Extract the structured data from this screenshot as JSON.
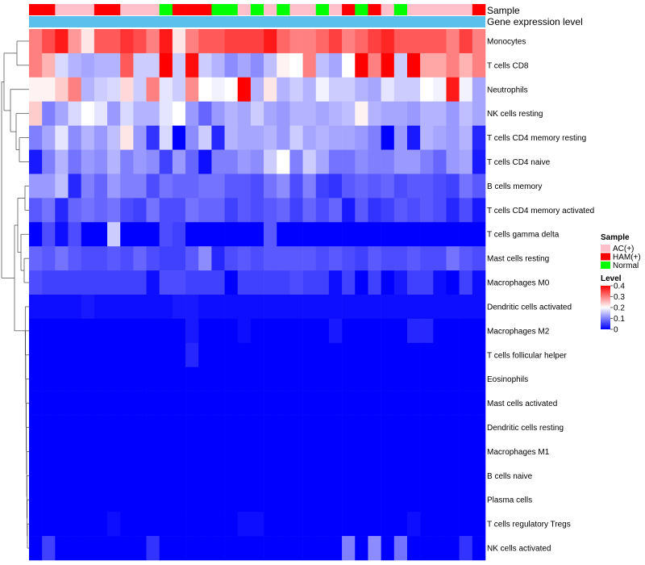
{
  "chart_data": {
    "type": "heatmap",
    "annotation_labels": [
      "Sample",
      "Gene expression level"
    ],
    "rows": [
      "Monocytes",
      "T cells CD8",
      "Neutrophils",
      "NK cells resting",
      "T cells CD4 memory resting",
      "T cells CD4 naive",
      "B cells memory",
      "T cells CD4 memory activated",
      "T cells gamma delta",
      "Mast cells resting",
      "Macrophages M0",
      "Dendritic cells activated",
      "Macrophages M2",
      "T cells follicular helper",
      "Eosinophils",
      "Mast cells activated",
      "Dendritic cells resting",
      "Macrophages M1",
      "B cells naive",
      "Plasma cells",
      "T cells regulatory  Tregs",
      "NK cells activated"
    ],
    "sample_groups": [
      "HAM(+)",
      "HAM(+)",
      "AC(+)",
      "AC(+)",
      "AC(+)",
      "HAM(+)",
      "HAM(+)",
      "AC(+)",
      "AC(+)",
      "AC(+)",
      "Normal",
      "HAM(+)",
      "HAM(+)",
      "HAM(+)",
      "Normal",
      "Normal",
      "AC(+)",
      "Normal",
      "AC(+)",
      "Normal",
      "AC(+)",
      "AC(+)",
      "Normal",
      "AC(+)",
      "HAM(+)",
      "Normal",
      "HAM(+)",
      "AC(+)",
      "Normal",
      "AC(+)",
      "AC(+)",
      "AC(+)",
      "AC(+)",
      "AC(+)",
      "HAM(+)"
    ],
    "values": [
      [
        0.3,
        0.34,
        0.38,
        0.28,
        0.22,
        0.33,
        0.33,
        0.36,
        0.34,
        0.3,
        0.38,
        0.22,
        0.3,
        0.33,
        0.33,
        0.35,
        0.35,
        0.35,
        0.38,
        0.32,
        0.3,
        0.3,
        0.32,
        0.35,
        0.3,
        0.32,
        0.35,
        0.37,
        0.33,
        0.33,
        0.33,
        0.33,
        0.3,
        0.35,
        0.3
      ],
      [
        0.3,
        0.26,
        0.17,
        0.14,
        0.13,
        0.14,
        0.14,
        0.33,
        0.16,
        0.16,
        0.4,
        0.16,
        0.39,
        0.16,
        0.14,
        0.11,
        0.13,
        0.11,
        0.15,
        0.21,
        0.2,
        0.3,
        0.15,
        0.13,
        0.2,
        0.4,
        0.3,
        0.4,
        0.16,
        0.4,
        0.27,
        0.27,
        0.3,
        0.26,
        0.3
      ],
      [
        0.21,
        0.21,
        0.24,
        0.3,
        0.14,
        0.16,
        0.17,
        0.23,
        0.16,
        0.3,
        0.18,
        0.16,
        0.29,
        0.2,
        0.19,
        0.2,
        0.4,
        0.14,
        0.22,
        0.14,
        0.16,
        0.14,
        0.19,
        0.16,
        0.16,
        0.14,
        0.13,
        0.18,
        0.16,
        0.16,
        0.2,
        0.19,
        0.38,
        0.19,
        0.13
      ],
      [
        0.24,
        0.1,
        0.13,
        0.17,
        0.2,
        0.18,
        0.12,
        0.17,
        0.14,
        0.14,
        0.18,
        0.2,
        0.12,
        0.08,
        0.12,
        0.14,
        0.13,
        0.16,
        0.13,
        0.12,
        0.14,
        0.14,
        0.13,
        0.14,
        0.15,
        0.21,
        0.14,
        0.13,
        0.13,
        0.12,
        0.14,
        0.14,
        0.12,
        0.15,
        0.13
      ],
      [
        0.1,
        0.13,
        0.18,
        0.11,
        0.14,
        0.12,
        0.15,
        0.22,
        0.12,
        0.04,
        0.17,
        0.0,
        0.11,
        0.16,
        0.03,
        0.14,
        0.13,
        0.13,
        0.14,
        0.12,
        0.16,
        0.13,
        0.14,
        0.13,
        0.13,
        0.12,
        0.1,
        0.0,
        0.12,
        0.02,
        0.14,
        0.13,
        0.12,
        0.14,
        0.03
      ],
      [
        0.02,
        0.1,
        0.14,
        0.09,
        0.12,
        0.11,
        0.14,
        0.1,
        0.12,
        0.11,
        0.05,
        0.12,
        0.08,
        0.01,
        0.1,
        0.1,
        0.12,
        0.11,
        0.16,
        0.2,
        0.1,
        0.16,
        0.13,
        0.09,
        0.09,
        0.11,
        0.1,
        0.1,
        0.12,
        0.12,
        0.1,
        0.08,
        0.12,
        0.13,
        0.02
      ],
      [
        0.12,
        0.12,
        0.15,
        0.03,
        0.1,
        0.08,
        0.12,
        0.1,
        0.1,
        0.06,
        0.09,
        0.08,
        0.08,
        0.09,
        0.09,
        0.07,
        0.07,
        0.06,
        0.09,
        0.11,
        0.06,
        0.1,
        0.05,
        0.04,
        0.07,
        0.08,
        0.07,
        0.08,
        0.06,
        0.07,
        0.07,
        0.06,
        0.05,
        0.09,
        0.07
      ],
      [
        0.07,
        0.09,
        0.03,
        0.08,
        0.09,
        0.08,
        0.09,
        0.06,
        0.05,
        0.09,
        0.06,
        0.06,
        0.09,
        0.08,
        0.08,
        0.05,
        0.07,
        0.06,
        0.07,
        0.08,
        0.05,
        0.08,
        0.06,
        0.08,
        0.02,
        0.07,
        0.04,
        0.05,
        0.07,
        0.06,
        0.07,
        0.06,
        0.03,
        0.06,
        0.02
      ],
      [
        0.0,
        0.06,
        0.01,
        0.06,
        0.0,
        0.0,
        0.16,
        0.0,
        0.0,
        0.0,
        0.06,
        0.05,
        0.0,
        0.0,
        0.0,
        0.0,
        0.0,
        0.0,
        0.07,
        0.0,
        0.0,
        0.0,
        0.0,
        0.0,
        0.0,
        0.0,
        0.0,
        0.0,
        0.0,
        0.0,
        0.0,
        0.0,
        0.0,
        0.0,
        0.0
      ],
      [
        0.08,
        0.07,
        0.09,
        0.07,
        0.06,
        0.06,
        0.07,
        0.06,
        0.08,
        0.06,
        0.05,
        0.05,
        0.07,
        0.11,
        0.03,
        0.06,
        0.07,
        0.06,
        0.07,
        0.07,
        0.07,
        0.07,
        0.06,
        0.07,
        0.06,
        0.05,
        0.07,
        0.06,
        0.06,
        0.07,
        0.06,
        0.06,
        0.09,
        0.07,
        0.06
      ],
      [
        0.06,
        0.05,
        0.05,
        0.05,
        0.05,
        0.05,
        0.05,
        0.05,
        0.05,
        0.01,
        0.06,
        0.06,
        0.05,
        0.05,
        0.05,
        0.0,
        0.05,
        0.05,
        0.05,
        0.05,
        0.06,
        0.05,
        0.05,
        0.01,
        0.05,
        0.0,
        0.05,
        0.0,
        0.02,
        0.05,
        0.05,
        0.01,
        0.0,
        0.05,
        0.01
      ],
      [
        0.01,
        0.01,
        0.01,
        0.01,
        0.02,
        0.01,
        0.01,
        0.01,
        0.01,
        0.01,
        0.01,
        0.02,
        0.02,
        0.01,
        0.01,
        0.01,
        0.01,
        0.01,
        0.01,
        0.01,
        0.01,
        0.01,
        0.01,
        0.01,
        0.01,
        0.01,
        0.01,
        0.01,
        0.01,
        0.01,
        0.01,
        0.01,
        0.01,
        0.01,
        0.01
      ],
      [
        0.0,
        0.0,
        0.0,
        0.0,
        0.0,
        0.0,
        0.0,
        0.0,
        0.0,
        0.0,
        0.0,
        0.0,
        0.02,
        0.0,
        0.0,
        0.0,
        0.01,
        0.0,
        0.0,
        0.0,
        0.0,
        0.0,
        0.0,
        0.02,
        0.0,
        0.0,
        0.0,
        0.0,
        0.0,
        0.03,
        0.03,
        0.0,
        0.0,
        0.0,
        0.0
      ],
      [
        0.0,
        0.0,
        0.0,
        0.0,
        0.0,
        0.0,
        0.0,
        0.0,
        0.0,
        0.0,
        0.0,
        0.0,
        0.03,
        0.0,
        0.0,
        0.0,
        0.0,
        0.0,
        0.0,
        0.0,
        0.0,
        0.0,
        0.0,
        0.0,
        0.0,
        0.0,
        0.0,
        0.0,
        0.0,
        0.0,
        0.0,
        0.0,
        0.0,
        0.0,
        0.0
      ],
      [
        0.0,
        0.0,
        0.0,
        0.0,
        0.0,
        0.0,
        0.0,
        0.0,
        0.0,
        0.0,
        0.0,
        0.0,
        0.0,
        0.0,
        0.0,
        0.0,
        0.0,
        0.0,
        0.0,
        0.0,
        0.0,
        0.0,
        0.0,
        0.0,
        0.0,
        0.0,
        0.0,
        0.0,
        0.0,
        0.0,
        0.0,
        0.0,
        0.0,
        0.0,
        0.0
      ],
      [
        0.0,
        0.0,
        0.0,
        0.0,
        0.0,
        0.0,
        0.0,
        0.0,
        0.0,
        0.0,
        0.0,
        0.0,
        0.0,
        0.0,
        0.0,
        0.0,
        0.0,
        0.0,
        0.0,
        0.0,
        0.0,
        0.0,
        0.0,
        0.0,
        0.0,
        0.0,
        0.0,
        0.0,
        0.0,
        0.0,
        0.0,
        0.0,
        0.0,
        0.0,
        0.0
      ],
      [
        0.0,
        0.0,
        0.0,
        0.0,
        0.0,
        0.0,
        0.0,
        0.0,
        0.0,
        0.0,
        0.0,
        0.0,
        0.0,
        0.0,
        0.0,
        0.0,
        0.0,
        0.0,
        0.0,
        0.0,
        0.0,
        0.0,
        0.0,
        0.0,
        0.0,
        0.0,
        0.0,
        0.0,
        0.0,
        0.0,
        0.0,
        0.0,
        0.0,
        0.0,
        0.0
      ],
      [
        0.0,
        0.0,
        0.0,
        0.0,
        0.0,
        0.0,
        0.0,
        0.0,
        0.0,
        0.0,
        0.0,
        0.0,
        0.0,
        0.0,
        0.0,
        0.0,
        0.0,
        0.0,
        0.0,
        0.0,
        0.0,
        0.0,
        0.0,
        0.0,
        0.0,
        0.0,
        0.0,
        0.0,
        0.0,
        0.0,
        0.0,
        0.0,
        0.0,
        0.0,
        0.0
      ],
      [
        0.0,
        0.0,
        0.0,
        0.0,
        0.0,
        0.0,
        0.0,
        0.0,
        0.0,
        0.0,
        0.0,
        0.0,
        0.0,
        0.0,
        0.0,
        0.0,
        0.0,
        0.0,
        0.0,
        0.0,
        0.0,
        0.0,
        0.0,
        0.0,
        0.0,
        0.0,
        0.0,
        0.0,
        0.0,
        0.0,
        0.0,
        0.0,
        0.0,
        0.0,
        0.0
      ],
      [
        0.0,
        0.0,
        0.0,
        0.0,
        0.0,
        0.0,
        0.0,
        0.0,
        0.0,
        0.0,
        0.0,
        0.0,
        0.0,
        0.0,
        0.0,
        0.0,
        0.0,
        0.0,
        0.0,
        0.0,
        0.0,
        0.0,
        0.0,
        0.0,
        0.0,
        0.0,
        0.0,
        0.0,
        0.0,
        0.0,
        0.0,
        0.0,
        0.0,
        0.0,
        0.0
      ],
      [
        0.0,
        0.0,
        0.0,
        0.0,
        0.0,
        0.0,
        0.01,
        0.0,
        0.0,
        0.0,
        0.0,
        0.0,
        0.0,
        0.0,
        0.0,
        0.0,
        0.01,
        0.01,
        0.0,
        0.0,
        0.0,
        0.0,
        0.0,
        0.0,
        0.0,
        0.0,
        0.0,
        0.0,
        0.0,
        0.01,
        0.0,
        0.0,
        0.0,
        0.0,
        0.0
      ],
      [
        0.0,
        0.05,
        0.0,
        0.0,
        0.0,
        0.0,
        0.0,
        0.0,
        0.0,
        0.04,
        0.0,
        0.0,
        0.0,
        0.0,
        0.0,
        0.0,
        0.0,
        0.0,
        0.0,
        0.0,
        0.0,
        0.0,
        0.0,
        0.0,
        0.1,
        0.0,
        0.11,
        0.0,
        0.09,
        0.0,
        0.0,
        0.0,
        0.0,
        0.04,
        0.0
      ]
    ],
    "scale": {
      "min": 0,
      "max": 0.4,
      "low_color": "#0000ff",
      "mid_color": "#ffffff",
      "high_color": "#ff0000",
      "midpoint": 0.2
    },
    "legend": {
      "sample_title": "Sample",
      "sample_entries": [
        {
          "label": "AC(+)",
          "color": "#ffc0cb"
        },
        {
          "label": "HAM(+)",
          "color": "#ff0000"
        },
        {
          "label": "Normal",
          "color": "#00ff00"
        }
      ],
      "level_title": "Level",
      "level_ticks": [
        "0.4",
        "0.3",
        "0.2",
        "0.1",
        "0"
      ],
      "placement": "right"
    },
    "gene_expression_color": "#5bc0eb",
    "dendrogram": "rows"
  }
}
